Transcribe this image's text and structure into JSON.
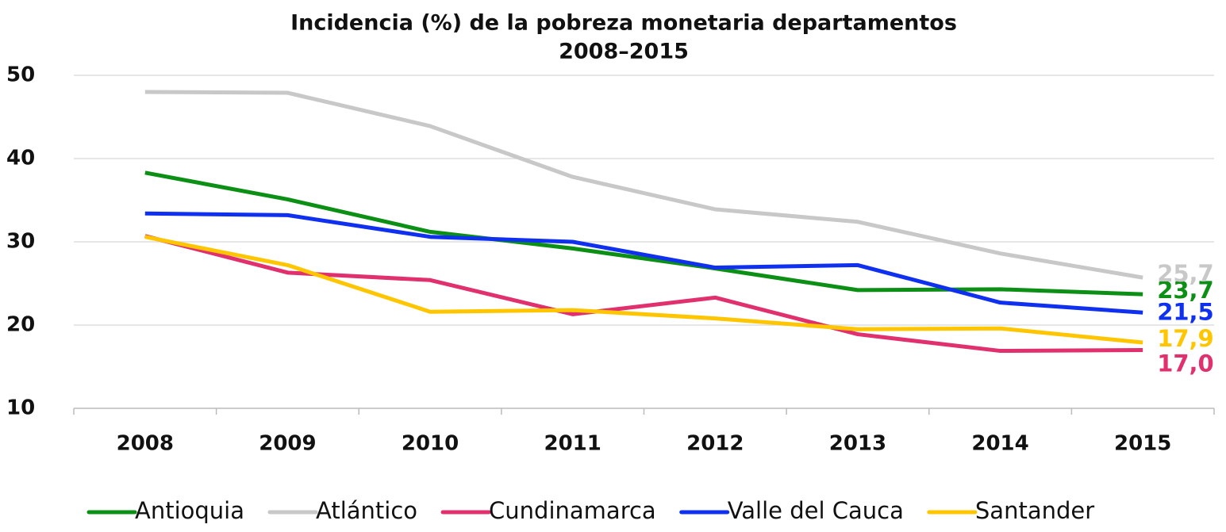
{
  "chart_data": {
    "type": "line",
    "title": "Incidencia (%) de la pobreza monetaria departamentos",
    "subtitle": "2008–2015",
    "categories": [
      "2008",
      "2009",
      "2010",
      "2011",
      "2012",
      "2013",
      "2014",
      "2015"
    ],
    "series": [
      {
        "name": "Antioquia",
        "color": "#0b8f14",
        "values": [
          38.3,
          35.1,
          31.2,
          29.2,
          26.8,
          24.2,
          24.3,
          23.7
        ],
        "value_labels": [
          null,
          null,
          null,
          null,
          null,
          null,
          null,
          "23,7"
        ]
      },
      {
        "name": "Atlántico",
        "color": "#c8c8c8",
        "values": [
          48.0,
          47.9,
          43.9,
          37.8,
          33.9,
          32.4,
          28.6,
          25.7
        ],
        "value_labels": [
          null,
          null,
          null,
          null,
          null,
          null,
          null,
          "25,7"
        ]
      },
      {
        "name": "Cundinamarca",
        "color": "#e0306e",
        "values": [
          30.7,
          26.3,
          25.4,
          21.3,
          23.3,
          18.9,
          16.9,
          17.0
        ],
        "value_labels": [
          null,
          null,
          null,
          null,
          null,
          null,
          null,
          "17,0"
        ]
      },
      {
        "name": "Valle del Cauca",
        "color": "#1030f0",
        "values": [
          33.4,
          33.2,
          30.6,
          30.0,
          26.9,
          27.2,
          22.7,
          21.5
        ],
        "value_labels": [
          null,
          null,
          null,
          null,
          null,
          null,
          null,
          "21,5"
        ]
      },
      {
        "name": "Santander",
        "color": "#ffc600",
        "values": [
          30.6,
          27.2,
          21.6,
          21.8,
          20.8,
          19.5,
          19.6,
          17.9
        ],
        "value_labels": [
          null,
          null,
          null,
          null,
          null,
          null,
          null,
          "17,9"
        ]
      }
    ],
    "ylim": [
      10,
      50
    ],
    "yticks": [
      10,
      20,
      30,
      40,
      50
    ],
    "grid": true,
    "legend": "bottom"
  }
}
